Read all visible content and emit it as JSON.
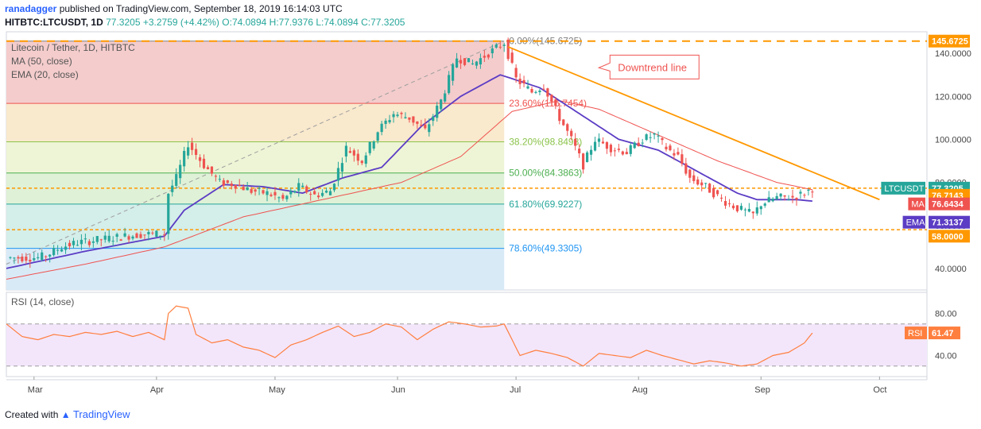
{
  "header": {
    "user": "ranadagger",
    "published": "published on TradingView.com, September 18, 2019 16:14:03 UTC",
    "symbol": "HITBTC:LTCUSDT, 1D",
    "last": "77.3205",
    "change": "+3.2759 (+4.42%)",
    "ohlc": "O:74.0894 H:77.9376 L:74.0894 C:77.3205"
  },
  "footer": {
    "created_with": "Created with",
    "brand": "TradingView"
  },
  "colors": {
    "up": "#26a69a",
    "down": "#ef5350",
    "ma": "#ef5350",
    "ema": "#5b3cc4",
    "trend": "#ff9800",
    "rsi": "#ff7f3f",
    "rsi_band": "#f3e6fb",
    "fib_zone_1": "#f4cccc",
    "fib_zone_2": "#f9e9cd",
    "fib_zone_3": "#eef5d6",
    "fib_zone_4": "#dff1d6",
    "fib_zone_5": "#d4eee9",
    "fib_zone_6": "#d9eaf7",
    "fib_zone_7": "#e6e6e6"
  },
  "chart_data": {
    "type": "candlestick",
    "legend": [
      "Litecoin / Tether, 1D, HITBTC",
      "MA (50, close)",
      "EMA (20, close)"
    ],
    "x_ticks": [
      {
        "label": "Mar",
        "day": 7
      },
      {
        "label": "Apr",
        "day": 38
      },
      {
        "label": "May",
        "day": 68
      },
      {
        "label": "Jun",
        "day": 99
      },
      {
        "label": "Jul",
        "day": 129
      },
      {
        "label": "Aug",
        "day": 160
      },
      {
        "label": "Sep",
        "day": 191
      },
      {
        "label": "Oct",
        "day": 221
      }
    ],
    "x_range": [
      0,
      233
    ],
    "y_range": [
      30,
      150
    ],
    "y_ticks": [
      "40.0000",
      "60.0000",
      "80.0000",
      "100.0000",
      "120.0000",
      "140.0000"
    ],
    "price_anchors": [
      [
        0,
        45
      ],
      [
        8,
        45
      ],
      [
        10,
        46
      ],
      [
        14,
        50
      ],
      [
        18,
        52
      ],
      [
        22,
        53
      ],
      [
        26,
        54
      ],
      [
        30,
        55
      ],
      [
        35,
        56
      ],
      [
        40,
        56
      ],
      [
        41,
        75
      ],
      [
        43,
        82
      ],
      [
        46,
        98
      ],
      [
        50,
        88
      ],
      [
        54,
        80
      ],
      [
        58,
        79
      ],
      [
        62,
        76
      ],
      [
        66,
        75
      ],
      [
        70,
        72
      ],
      [
        74,
        78
      ],
      [
        78,
        74
      ],
      [
        82,
        76
      ],
      [
        86,
        96
      ],
      [
        90,
        90
      ],
      [
        94,
        104
      ],
      [
        98,
        112
      ],
      [
        102,
        110
      ],
      [
        106,
        104
      ],
      [
        110,
        118
      ],
      [
        114,
        138
      ],
      [
        118,
        135
      ],
      [
        122,
        140
      ],
      [
        126,
        145
      ],
      [
        129,
        128
      ],
      [
        133,
        122
      ],
      [
        136,
        125
      ],
      [
        140,
        110
      ],
      [
        143,
        100
      ],
      [
        146,
        88
      ],
      [
        149,
        100
      ],
      [
        153,
        96
      ],
      [
        157,
        94
      ],
      [
        161,
        100
      ],
      [
        164,
        102
      ],
      [
        167,
        96
      ],
      [
        170,
        92
      ],
      [
        173,
        82
      ],
      [
        177,
        78
      ],
      [
        181,
        72
      ],
      [
        185,
        68
      ],
      [
        189,
        65
      ],
      [
        191,
        70
      ],
      [
        195,
        73
      ],
      [
        199,
        73
      ],
      [
        202,
        75
      ],
      [
        204,
        77.32
      ]
    ],
    "ma_anchors": [
      [
        0,
        35
      ],
      [
        20,
        42
      ],
      [
        40,
        50
      ],
      [
        60,
        64
      ],
      [
        80,
        72
      ],
      [
        100,
        80
      ],
      [
        115,
        92
      ],
      [
        128,
        113
      ],
      [
        140,
        118
      ],
      [
        150,
        114
      ],
      [
        165,
        102
      ],
      [
        180,
        90
      ],
      [
        195,
        80
      ],
      [
        204,
        76.64
      ]
    ],
    "ema_anchors": [
      [
        0,
        40
      ],
      [
        20,
        48
      ],
      [
        40,
        55
      ],
      [
        45,
        67
      ],
      [
        55,
        79
      ],
      [
        65,
        78
      ],
      [
        75,
        75
      ],
      [
        85,
        82
      ],
      [
        95,
        87
      ],
      [
        105,
        106
      ],
      [
        115,
        120
      ],
      [
        125,
        130
      ],
      [
        135,
        124
      ],
      [
        145,
        112
      ],
      [
        155,
        100
      ],
      [
        165,
        95
      ],
      [
        175,
        85
      ],
      [
        185,
        75
      ],
      [
        190,
        72
      ],
      [
        200,
        72
      ],
      [
        204,
        71.31
      ]
    ],
    "trendline": {
      "from": [
        127,
        143
      ],
      "to": [
        221,
        72
      ]
    },
    "horizontal_levels": [
      {
        "value": 145.6725,
        "label": "145.6725"
      },
      {
        "value": 58.0,
        "label": "58.0000"
      },
      {
        "value": 77.3205,
        "label": "77.3205"
      }
    ],
    "fib": {
      "start_day": 0,
      "end_day": 126,
      "low": 30,
      "high": 145.6725,
      "levels": [
        {
          "ratio": "0.00%",
          "value": 145.6725,
          "label": "0.00%(145.6725)"
        },
        {
          "ratio": "23.60%",
          "value": 116.7454,
          "label": "23.60%(116.7454)"
        },
        {
          "ratio": "38.20%",
          "value": 98.8498,
          "label": "38.20%(98.8498)"
        },
        {
          "ratio": "50.00%",
          "value": 84.3863,
          "label": "50.00%(84.3863)"
        },
        {
          "ratio": "61.80%",
          "value": 69.9227,
          "label": "61.80%(69.9227)"
        },
        {
          "ratio": "78.60%",
          "value": 49.3305,
          "label": "78.60%(49.3305)"
        }
      ]
    },
    "price_labels": [
      {
        "text": "LTCUSDT",
        "value": "77.3205",
        "level": 77.3205,
        "color": "#26a69a"
      },
      {
        "text": "",
        "value": "76.7143",
        "level": 74.0,
        "color": "#ff9800"
      },
      {
        "text": "MA",
        "value": "76.6434",
        "level": 70.0,
        "color": "#ef5350"
      },
      {
        "text": "EMA",
        "value": "71.3137",
        "level": 61.5,
        "color": "#5b3cc4"
      },
      {
        "text": "",
        "value": "58.0000",
        "level": 55.0,
        "color": "#ff9800"
      }
    ],
    "annotation": {
      "text": "Downtrend line",
      "day": 158,
      "value": 134
    },
    "rsi": {
      "label": "RSI (14, close)",
      "current_label": "RSI",
      "current": "61.47",
      "y_range": [
        20,
        100
      ],
      "y_ticks": [
        "40.00",
        "80.00"
      ],
      "band": [
        30,
        70
      ],
      "anchors": [
        [
          0,
          70
        ],
        [
          4,
          58
        ],
        [
          8,
          55
        ],
        [
          12,
          60
        ],
        [
          16,
          58
        ],
        [
          20,
          62
        ],
        [
          24,
          60
        ],
        [
          28,
          63
        ],
        [
          32,
          58
        ],
        [
          36,
          62
        ],
        [
          40,
          55
        ],
        [
          41,
          80
        ],
        [
          43,
          87
        ],
        [
          46,
          85
        ],
        [
          48,
          60
        ],
        [
          52,
          52
        ],
        [
          56,
          55
        ],
        [
          60,
          48
        ],
        [
          64,
          45
        ],
        [
          68,
          38
        ],
        [
          72,
          50
        ],
        [
          76,
          55
        ],
        [
          80,
          62
        ],
        [
          84,
          68
        ],
        [
          88,
          58
        ],
        [
          92,
          62
        ],
        [
          96,
          70
        ],
        [
          100,
          67
        ],
        [
          104,
          55
        ],
        [
          108,
          65
        ],
        [
          112,
          72
        ],
        [
          116,
          70
        ],
        [
          120,
          67
        ],
        [
          124,
          68
        ],
        [
          126,
          70
        ],
        [
          130,
          40
        ],
        [
          134,
          45
        ],
        [
          138,
          42
        ],
        [
          142,
          38
        ],
        [
          146,
          30
        ],
        [
          150,
          42
        ],
        [
          154,
          40
        ],
        [
          158,
          38
        ],
        [
          162,
          45
        ],
        [
          166,
          40
        ],
        [
          170,
          36
        ],
        [
          174,
          32
        ],
        [
          178,
          35
        ],
        [
          182,
          33
        ],
        [
          186,
          30
        ],
        [
          190,
          32
        ],
        [
          194,
          40
        ],
        [
          198,
          43
        ],
        [
          202,
          52
        ],
        [
          204,
          61.47
        ]
      ]
    }
  }
}
